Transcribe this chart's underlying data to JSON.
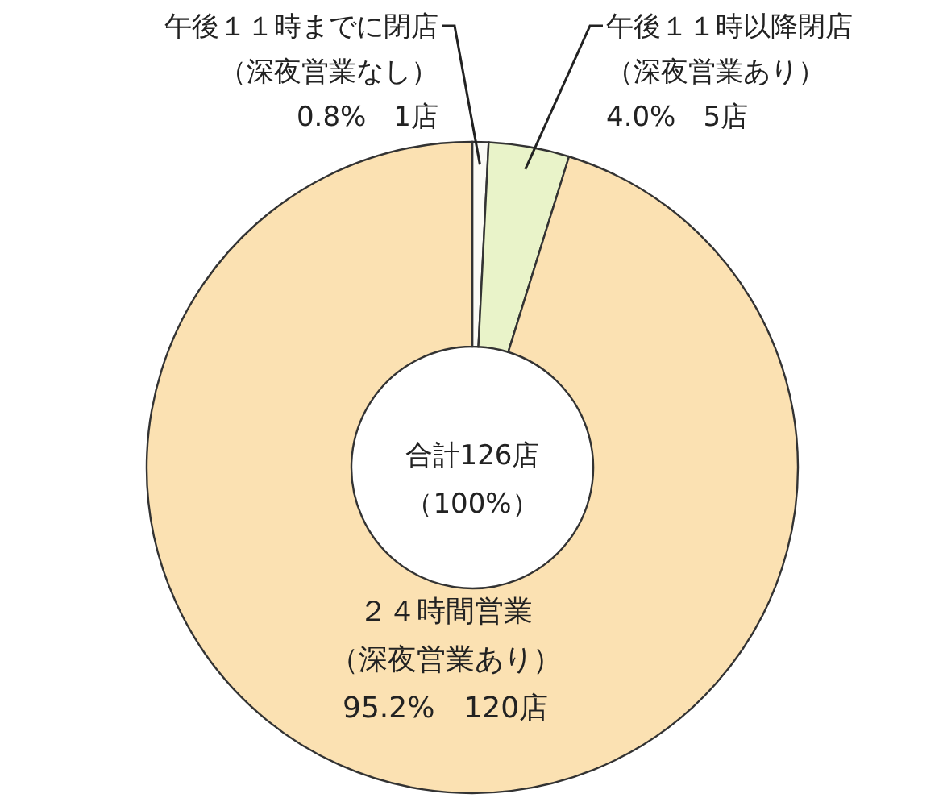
{
  "chart_data": {
    "type": "donut",
    "categories": [
      "午後１１時までに閉店（深夜営業なし）",
      "午後１１時以降閉店（深夜営業あり）",
      "２４時間営業（深夜営業あり）"
    ],
    "values": [
      0.8,
      4.0,
      95.2
    ],
    "colors": [
      "#fbfbf6",
      "#e9f3c9",
      "#fbe1b2"
    ],
    "value_labels": [
      "0.8%　1店",
      "4.0%　5店",
      "95.2%　120店"
    ],
    "annotations": [
      "合計126店",
      "（100%）"
    ]
  }
}
